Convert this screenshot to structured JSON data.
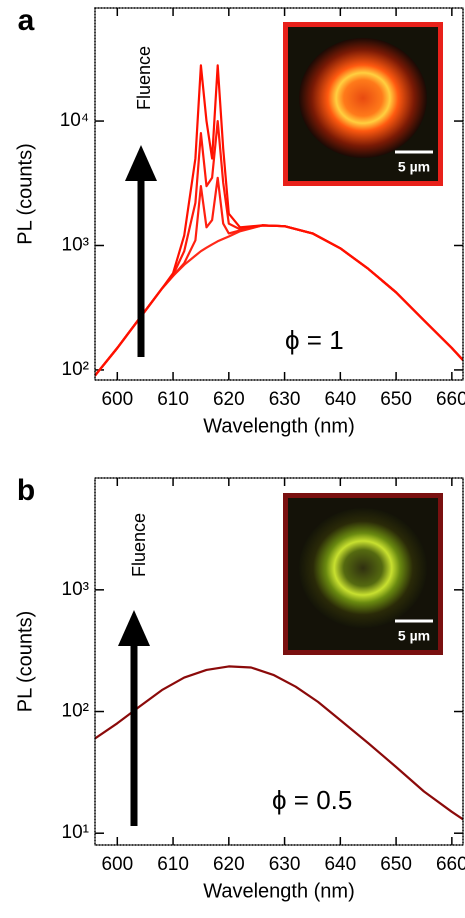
{
  "chart_data": [
    {
      "type": "line",
      "panel_label": "a",
      "xlabel": "Wavelength (nm)",
      "ylabel": "PL (counts)",
      "log_y": true,
      "xlim": [
        596,
        662
      ],
      "ylim": [
        83,
        81000
      ],
      "xticks": [
        600,
        610,
        620,
        630,
        640,
        650,
        660
      ],
      "yticks": [
        {
          "value": 100,
          "label": "10²"
        },
        {
          "value": 1000,
          "label": "10³"
        },
        {
          "value": 10000,
          "label": "10⁴"
        }
      ],
      "annotations": {
        "arrow_label": "Fluence",
        "phi_label": "ϕ = 1",
        "scale_bar": "5 µm"
      },
      "x": [
        596,
        600,
        604,
        608,
        610,
        612,
        614,
        615,
        616,
        617,
        618,
        619,
        620,
        622,
        626,
        630,
        635,
        640,
        645,
        650,
        655,
        660,
        662
      ],
      "series": [
        {
          "color": "#ff2a1a",
          "values": [
            90,
            150,
            260,
            450,
            570,
            700,
            830,
            900,
            960,
            1020,
            1080,
            1130,
            1180,
            1300,
            1450,
            1430,
            1250,
            950,
            650,
            420,
            250,
            150,
            120
          ]
        },
        {
          "color": "#ff2010",
          "values": [
            90,
            150,
            260,
            450,
            570,
            720,
            1100,
            3000,
            1400,
            1600,
            3500,
            1500,
            1250,
            1320,
            1450,
            1430,
            1250,
            950,
            650,
            420,
            250,
            150,
            120
          ]
        },
        {
          "color": "#ff1a0a",
          "values": [
            90,
            150,
            260,
            450,
            580,
            900,
            2200,
            8000,
            3000,
            3500,
            10000,
            3200,
            1500,
            1350,
            1450,
            1430,
            1250,
            950,
            650,
            420,
            250,
            150,
            120
          ]
        },
        {
          "color": "#ff1000",
          "values": [
            90,
            150,
            260,
            450,
            600,
            1200,
            5000,
            28000,
            10000,
            5000,
            28000,
            6000,
            1800,
            1400,
            1450,
            1430,
            1250,
            950,
            650,
            420,
            250,
            150,
            120
          ]
        }
      ]
    },
    {
      "type": "line",
      "panel_label": "b",
      "xlabel": "Wavelength (nm)",
      "ylabel": "PL (counts)",
      "log_y": true,
      "xlim": [
        596,
        662
      ],
      "ylim": [
        8,
        8300
      ],
      "xticks": [
        600,
        610,
        620,
        630,
        640,
        650,
        660
      ],
      "yticks": [
        {
          "value": 10,
          "label": "10¹"
        },
        {
          "value": 100,
          "label": "10²"
        },
        {
          "value": 1000,
          "label": "10³"
        }
      ],
      "annotations": {
        "arrow_label": "Fluence",
        "phi_label": "ϕ = 0.5",
        "scale_bar": "5 µm"
      },
      "x": [
        596,
        600,
        604,
        608,
        612,
        616,
        620,
        624,
        628,
        632,
        636,
        640,
        645,
        650,
        655,
        660,
        662
      ],
      "series": [
        {
          "color": "#8b0a0a",
          "values": [
            60,
            80,
            110,
            150,
            190,
            220,
            235,
            230,
            200,
            160,
            120,
            85,
            55,
            35,
            22,
            15,
            13
          ]
        }
      ]
    }
  ]
}
